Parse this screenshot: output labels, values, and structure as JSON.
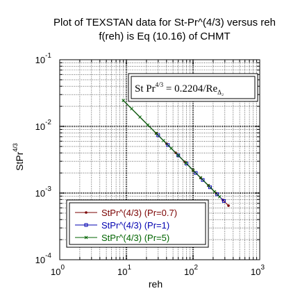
{
  "chart_data": {
    "type": "line",
    "title": "Plot of TEXSTAN data for St-Pr^(4/3) versus reh",
    "subtitle": "f(reh) is Eq (10.16) of CHMT",
    "xlabel": "reh",
    "ylabel": "StPr",
    "ylabel_exponent": "4/3",
    "x_scale": "log",
    "y_scale": "log",
    "xlim": [
      1,
      1000
    ],
    "ylim": [
      0.0001,
      0.1
    ],
    "x_ticks": [
      {
        "value": 1,
        "base": "10",
        "exp": "0"
      },
      {
        "value": 10,
        "base": "10",
        "exp": "1"
      },
      {
        "value": 100,
        "base": "10",
        "exp": "2"
      },
      {
        "value": 1000,
        "base": "10",
        "exp": "3"
      }
    ],
    "y_ticks": [
      {
        "value": 0.1,
        "base": "10",
        "exp": "-1"
      },
      {
        "value": 0.01,
        "base": "10",
        "exp": "-2"
      },
      {
        "value": 0.001,
        "base": "10",
        "exp": "-3"
      },
      {
        "value": 0.0001,
        "base": "10",
        "exp": "-4"
      }
    ],
    "grid": true,
    "legend_position": "bottom-left",
    "correlation": {
      "label_main": "St Pr",
      "label_exp": "4/3",
      "label_mid": " = 0.2204/Re",
      "label_sub": "Δ₂",
      "coefficient": 0.2204,
      "exponent": -1,
      "x_range": [
        9,
        250
      ],
      "color": "#000000"
    },
    "series": [
      {
        "name": "StPr^(4/3) (Pr=0.7)",
        "color": "#7a0000",
        "marker": "dot",
        "x": [
          28,
          40,
          55,
          75,
          100,
          130,
          170,
          220,
          280,
          340
        ],
        "y": [
          0.00787,
          0.00551,
          0.00401,
          0.00294,
          0.0022,
          0.00169,
          0.0013,
          0.001,
          0.000787,
          0.000648
        ]
      },
      {
        "name": "StPr^(4/3) (Pr=1)",
        "color": "#0000b0",
        "marker": "square",
        "x": [
          30,
          42,
          60,
          80,
          110,
          140,
          180,
          230,
          290
        ],
        "y": [
          0.00735,
          0.00525,
          0.00367,
          0.00276,
          0.002,
          0.00157,
          0.00122,
          0.000958,
          0.00076
        ]
      },
      {
        "name": "StPr^(4/3) (Pr=5)",
        "color": "#006400",
        "marker": "cross",
        "x": [
          9,
          12,
          16,
          21,
          28,
          36,
          47,
          60,
          78,
          100,
          130,
          170,
          210,
          250
        ],
        "y": [
          0.0245,
          0.0184,
          0.0138,
          0.0105,
          0.00787,
          0.00612,
          0.00469,
          0.00367,
          0.00283,
          0.0022,
          0.0017,
          0.0013,
          0.00105,
          0.00088
        ]
      }
    ]
  }
}
